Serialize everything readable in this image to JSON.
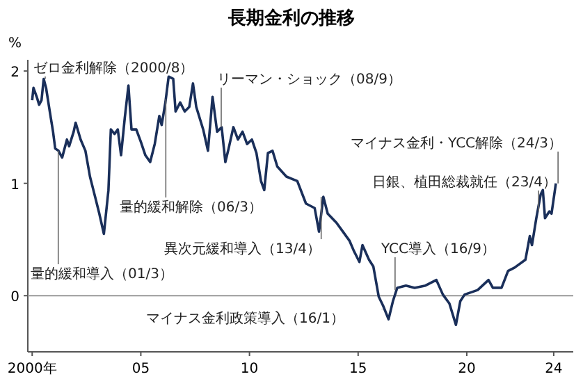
{
  "chart_data": {
    "type": "line",
    "title": "長期金利の推移",
    "ylabel": "%",
    "x": [
      2000.0,
      2000.06,
      2000.21,
      2000.32,
      2000.43,
      2000.53,
      2000.64,
      2000.81,
      2000.96,
      2001.06,
      2001.21,
      2001.38,
      2001.6,
      2001.7,
      2001.91,
      2002.0,
      2002.23,
      2002.45,
      2002.66,
      2002.87,
      2003.09,
      2003.3,
      2003.51,
      2003.62,
      2003.79,
      2003.94,
      2004.09,
      2004.26,
      2004.43,
      2004.57,
      2004.79,
      2005.0,
      2005.21,
      2005.43,
      2005.64,
      2005.85,
      2005.96,
      2006.13,
      2006.28,
      2006.49,
      2006.6,
      2006.81,
      2007.02,
      2007.23,
      2007.4,
      2007.55,
      2007.87,
      2008.09,
      2008.3,
      2008.51,
      2008.72,
      2008.89,
      2009.04,
      2009.26,
      2009.47,
      2009.68,
      2009.89,
      2010.11,
      2010.32,
      2010.53,
      2010.68,
      2010.85,
      2011.06,
      2011.28,
      2011.7,
      2012.2,
      2012.6,
      2013.0,
      2013.2,
      2013.4,
      2013.6,
      2014.0,
      2014.3,
      2014.6,
      2014.8,
      2015.06,
      2015.2,
      2015.5,
      2015.7,
      2015.95,
      2016.15,
      2016.4,
      2016.6,
      2016.8,
      2017.2,
      2017.6,
      2018.1,
      2018.6,
      2018.9,
      2019.2,
      2019.5,
      2019.7,
      2019.9,
      2020.2,
      2020.5,
      2021.0,
      2021.2,
      2021.6,
      2021.9,
      2022.2,
      2022.7,
      2022.9,
      2023.0,
      2023.2,
      2023.4,
      2023.5,
      2023.6,
      2023.8,
      2023.9,
      2024.1
    ],
    "values": [
      1.74,
      1.85,
      1.77,
      1.7,
      1.74,
      1.93,
      1.85,
      1.64,
      1.46,
      1.31,
      1.29,
      1.23,
      1.39,
      1.33,
      1.46,
      1.54,
      1.39,
      1.29,
      1.06,
      0.9,
      0.73,
      0.55,
      0.94,
      1.48,
      1.44,
      1.48,
      1.25,
      1.58,
      1.87,
      1.48,
      1.48,
      1.37,
      1.25,
      1.19,
      1.35,
      1.6,
      1.52,
      1.72,
      1.95,
      1.93,
      1.64,
      1.72,
      1.64,
      1.68,
      1.89,
      1.68,
      1.48,
      1.29,
      1.77,
      1.46,
      1.5,
      1.19,
      1.31,
      1.5,
      1.39,
      1.46,
      1.35,
      1.39,
      1.27,
      1.02,
      0.94,
      1.27,
      1.29,
      1.15,
      1.06,
      1.02,
      0.82,
      0.78,
      0.57,
      0.88,
      0.73,
      0.65,
      0.57,
      0.49,
      0.4,
      0.3,
      0.45,
      0.32,
      0.26,
      -0.01,
      -0.09,
      -0.21,
      -0.05,
      0.07,
      0.09,
      0.07,
      0.09,
      0.14,
      0.01,
      -0.07,
      -0.26,
      -0.05,
      0.01,
      0.03,
      0.05,
      0.14,
      0.07,
      0.07,
      0.22,
      0.25,
      0.32,
      0.53,
      0.45,
      0.69,
      0.9,
      0.94,
      0.69,
      0.75,
      0.73,
      1.0
    ],
    "color": "#1a2f5a",
    "xlim": [
      1999.8,
      2024.9
    ],
    "ylim": [
      -0.5,
      2.1
    ],
    "xticks": [
      {
        "value": 2000,
        "label": "2000年"
      },
      {
        "value": 2005,
        "label": "05"
      },
      {
        "value": 2010,
        "label": "10"
      },
      {
        "value": 2015,
        "label": "15"
      },
      {
        "value": 2020,
        "label": "20"
      },
      {
        "value": 2024,
        "label": "24"
      }
    ],
    "yticks": [
      0,
      1,
      2
    ],
    "grid": false,
    "line_style": "solid",
    "ref_lines": [
      {
        "axis": "y",
        "value": 0,
        "color": "#999999"
      }
    ],
    "annotations": [
      {
        "text": "ゼロ金利解除（2000/8）",
        "x": 2000.6,
        "y": 1.93
      },
      {
        "text": "量的緩和導入（01/3）",
        "x": 2001.2,
        "y": 1.29
      },
      {
        "text": "量的緩和解除（06/3）",
        "x": 2006.15,
        "y": 1.75
      },
      {
        "text": "リーマン・ショック（08/9）",
        "x": 2008.7,
        "y": 1.5
      },
      {
        "text": "異次元緩和導入（13/4）",
        "x": 2013.3,
        "y": 0.88
      },
      {
        "text": "マイナス金利政策導入（16/1）",
        "x": 2016.1,
        "y": -0.12
      },
      {
        "text": "YCC導入（16/9）",
        "x": 2016.7,
        "y": 0.05
      },
      {
        "text": "日銀、植田総裁就任（23/4）",
        "x": 2023.3,
        "y": 0.75
      },
      {
        "text": "マイナス金利・YCC解除（24/3）",
        "x": 2024.2,
        "y": 1.0
      }
    ]
  }
}
